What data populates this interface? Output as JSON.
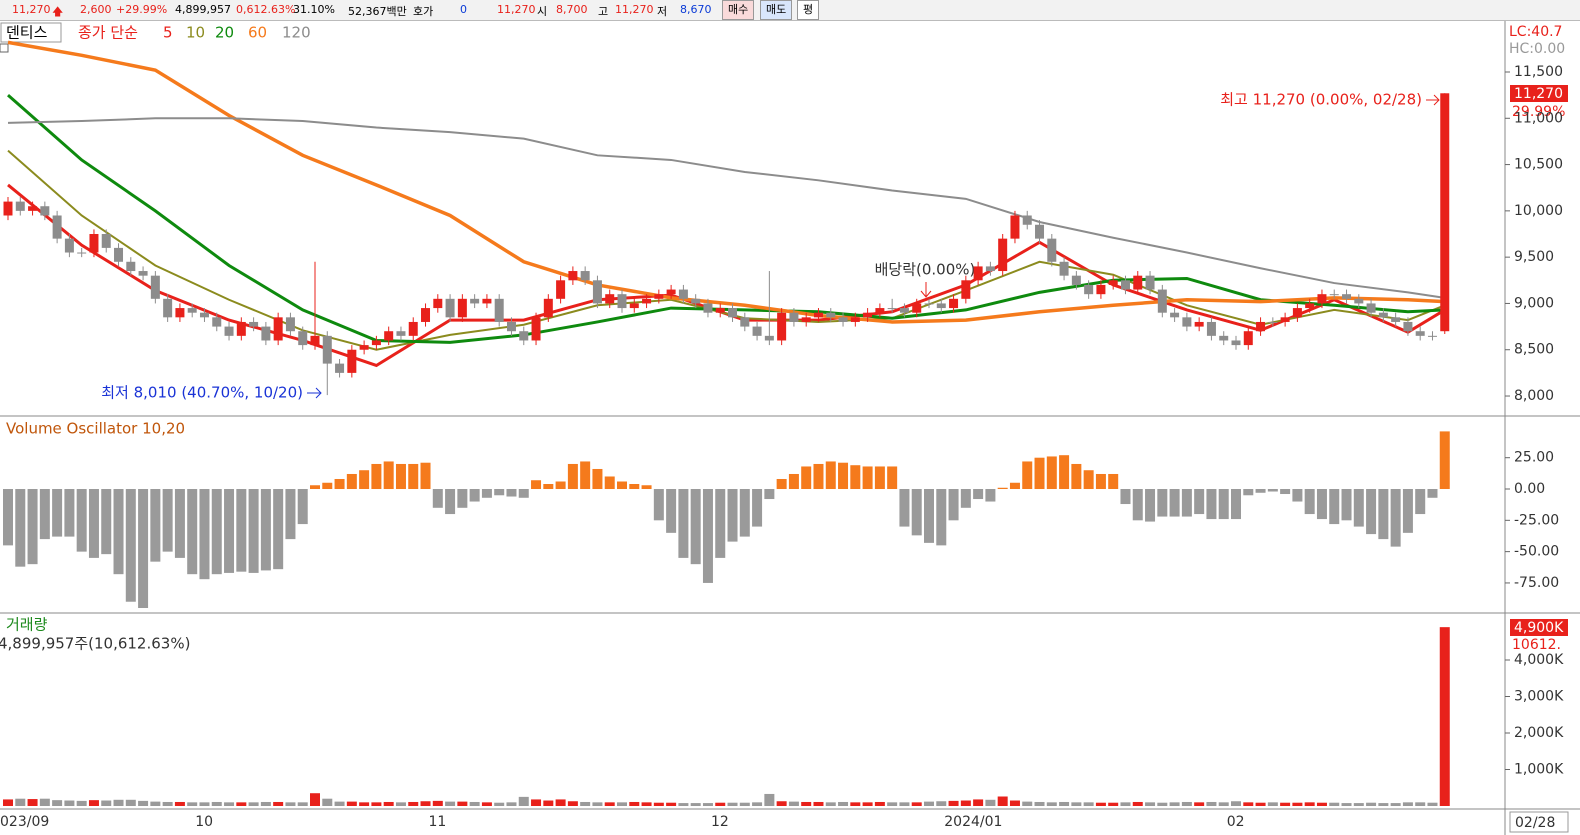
{
  "quote_bar": {
    "price": "11,270",
    "change": "2,600",
    "change_pct": "+29.99%",
    "volume": "4,899,957",
    "volume_pct": "0,612.63%",
    "turnover": "31.10%",
    "amount": "52,367백만",
    "ask_label": "호가",
    "ask": "0",
    "ask_price": "11,270",
    "open_label": "시",
    "open": "8,700",
    "high_label": "고",
    "high": "11,270",
    "low_label": "저",
    "low": "8,670",
    "buttons": [
      "매수",
      "매도",
      "평"
    ]
  },
  "chart_data": [
    {
      "type": "candlestick",
      "title": "덴티스",
      "legend_label": "종가 단순",
      "lc_label": "LC:40.7",
      "hc_label": "HC:0.00",
      "up_color": "#e8211b",
      "down_color": "#8c8c8c",
      "open": [
        9950,
        10100,
        10000,
        10050,
        9950,
        9700,
        9550,
        9550,
        9750,
        9600,
        9450,
        9350,
        9300,
        9050,
        8850,
        8950,
        8900,
        8850,
        8750,
        8650,
        8800,
        8750,
        8600,
        8850,
        8700,
        8550,
        8650,
        8350,
        8250,
        8500,
        8550,
        8600,
        8700,
        8650,
        8800,
        8950,
        9050,
        8850,
        9050,
        9000,
        9050,
        8800,
        8700,
        8600,
        8850,
        9050,
        9250,
        9350,
        9250,
        9000,
        9100,
        8950,
        9000,
        9050,
        9100,
        9150,
        9050,
        9000,
        8900,
        8950,
        8850,
        8750,
        8650,
        8600,
        8900,
        8800,
        8850,
        8900,
        8850,
        8800,
        8850,
        8900,
        8950,
        8950,
        8900,
        9000,
        9000,
        8950,
        9050,
        9250,
        9400,
        9350,
        9700,
        9950,
        9850,
        9700,
        9450,
        9300,
        9200,
        9100,
        9200,
        9250,
        9150,
        9300,
        9150,
        8900,
        8850,
        8750,
        8800,
        8650,
        8600,
        8550,
        8700,
        8800,
        8800,
        8850,
        8950,
        9000,
        9100,
        9100,
        9050,
        9000,
        8900,
        8850,
        8800,
        8700,
        8650,
        8700
      ],
      "high": [
        10150,
        10150,
        10100,
        10100,
        10000,
        9750,
        9600,
        9800,
        9800,
        9650,
        9500,
        9400,
        9350,
        9100,
        9000,
        9000,
        8950,
        8900,
        8800,
        8850,
        8850,
        8800,
        8900,
        8900,
        8750,
        9450,
        8700,
        8400,
        8550,
        8600,
        8650,
        8750,
        8750,
        8850,
        9000,
        9100,
        9100,
        9100,
        9100,
        9100,
        9100,
        8850,
        8750,
        8900,
        9100,
        9300,
        9400,
        9400,
        9300,
        9150,
        9150,
        9050,
        9100,
        9150,
        9200,
        9200,
        9100,
        9050,
        9000,
        9000,
        8900,
        8800,
        9350,
        8950,
        8950,
        8900,
        8950,
        8950,
        8900,
        8900,
        8950,
        9000,
        9050,
        9000,
        9050,
        9050,
        9050,
        9100,
        9300,
        9450,
        9450,
        9750,
        10000,
        10000,
        9900,
        9750,
        9500,
        9350,
        9250,
        9250,
        9300,
        9300,
        9350,
        9350,
        9200,
        8950,
        8900,
        8850,
        8850,
        8700,
        8650,
        8750,
        8850,
        8850,
        8900,
        9000,
        9050,
        9150,
        9150,
        9150,
        9100,
        9050,
        8950,
        8900,
        8850,
        8750,
        8700,
        11270
      ],
      "low": [
        9900,
        9950,
        9950,
        9900,
        9650,
        9500,
        9500,
        9500,
        9550,
        9400,
        9300,
        9250,
        9000,
        8800,
        8800,
        8850,
        8800,
        8700,
        8600,
        8600,
        8700,
        8550,
        8550,
        8650,
        8500,
        8500,
        8010,
        8200,
        8200,
        8450,
        8500,
        8550,
        8600,
        8600,
        8750,
        8900,
        8800,
        8800,
        8950,
        8950,
        8750,
        8650,
        8550,
        8550,
        8800,
        9000,
        9200,
        9200,
        8950,
        8950,
        8900,
        8900,
        8950,
        9000,
        9050,
        9000,
        8950,
        8850,
        8850,
        8800,
        8700,
        8600,
        8550,
        8550,
        8750,
        8750,
        8800,
        8800,
        8750,
        8750,
        8800,
        8850,
        8900,
        8850,
        8850,
        8950,
        8900,
        8900,
        9000,
        9200,
        9300,
        9300,
        9650,
        9800,
        9650,
        9400,
        9250,
        9150,
        9050,
        9050,
        9150,
        9100,
        9100,
        9100,
        8850,
        8800,
        8700,
        8700,
        8600,
        8550,
        8500,
        8500,
        8650,
        8750,
        8750,
        8800,
        8900,
        8950,
        9050,
        9000,
        8950,
        8850,
        8800,
        8750,
        8650,
        8600,
        8600,
        8670
      ],
      "close": [
        10100,
        10000,
        10050,
        9950,
        9700,
        9550,
        9550,
        9750,
        9600,
        9450,
        9350,
        9300,
        9050,
        8850,
        8950,
        8900,
        8850,
        8750,
        8650,
        8800,
        8750,
        8600,
        8850,
        8700,
        8550,
        8650,
        8350,
        8250,
        8500,
        8550,
        8600,
        8700,
        8650,
        8800,
        8950,
        9050,
        8850,
        9050,
        9000,
        9050,
        8800,
        8700,
        8600,
        8850,
        9050,
        9250,
        9350,
        9250,
        9000,
        9100,
        8950,
        9000,
        9050,
        9100,
        9150,
        9050,
        9000,
        8900,
        8950,
        8850,
        8750,
        8650,
        8600,
        8900,
        8800,
        8850,
        8900,
        8850,
        8800,
        8850,
        8900,
        8950,
        8950,
        8900,
        9000,
        9000,
        8950,
        9050,
        9250,
        9400,
        9350,
        9700,
        9950,
        9850,
        9700,
        9450,
        9300,
        9200,
        9100,
        9200,
        9250,
        9150,
        9300,
        9150,
        8900,
        8850,
        8750,
        8800,
        8650,
        8600,
        8550,
        8700,
        8800,
        8800,
        8850,
        8950,
        9000,
        9100,
        9100,
        9050,
        9000,
        8900,
        8850,
        8800,
        8700,
        8650,
        8650,
        11270
      ],
      "series": [
        {
          "name": "5",
          "color": "#e8211b",
          "x": [
            0,
            6,
            12,
            18,
            24,
            30,
            36,
            42,
            48,
            54,
            60,
            66,
            72,
            78,
            84,
            90,
            96,
            102,
            108,
            114,
            117
          ],
          "values": [
            10280,
            9630,
            9140,
            8820,
            8600,
            8330,
            8820,
            8820,
            9040,
            9090,
            8820,
            8820,
            8910,
            9200,
            9660,
            9200,
            8930,
            8710,
            9040,
            8690,
            8930
          ]
        },
        {
          "name": "10",
          "color": "#8b8b1e",
          "x": [
            0,
            6,
            12,
            18,
            24,
            30,
            36,
            42,
            48,
            54,
            60,
            66,
            72,
            78,
            84,
            90,
            96,
            102,
            108,
            114,
            117
          ],
          "values": [
            10650,
            9950,
            9410,
            9040,
            8710,
            8500,
            8660,
            8770,
            8980,
            9040,
            8840,
            8800,
            8840,
            9140,
            9450,
            9310,
            8980,
            8770,
            8930,
            8820,
            8980
          ]
        },
        {
          "name": "20",
          "color": "#0e8a0e",
          "x": [
            0,
            6,
            12,
            18,
            24,
            30,
            36,
            42,
            48,
            54,
            60,
            66,
            72,
            78,
            84,
            90,
            96,
            102,
            108,
            114,
            117
          ],
          "values": [
            11250,
            10550,
            10000,
            9410,
            8930,
            8600,
            8580,
            8660,
            8800,
            8950,
            8930,
            8910,
            8840,
            8930,
            9120,
            9250,
            9270,
            9040,
            8980,
            8910,
            8930
          ]
        },
        {
          "name": "60",
          "color": "#f57a1c",
          "x": [
            0,
            6,
            12,
            18,
            24,
            30,
            36,
            42,
            48,
            54,
            60,
            66,
            72,
            78,
            84,
            90,
            96,
            102,
            108,
            114,
            117
          ],
          "values": [
            11820,
            11680,
            11520,
            11030,
            10600,
            10280,
            9950,
            9450,
            9200,
            9060,
            8980,
            8870,
            8800,
            8820,
            8910,
            8980,
            9040,
            9020,
            9060,
            9040,
            9020
          ]
        },
        {
          "name": "120",
          "color": "#8c8c8c",
          "x": [
            0,
            6,
            12,
            18,
            24,
            30,
            36,
            42,
            48,
            54,
            60,
            66,
            72,
            78,
            84,
            90,
            96,
            102,
            108,
            114,
            117
          ],
          "values": [
            10950,
            10970,
            11000,
            11000,
            10970,
            10900,
            10850,
            10780,
            10600,
            10550,
            10420,
            10330,
            10220,
            10130,
            9880,
            9710,
            9550,
            9380,
            9220,
            9120,
            9060
          ]
        }
      ],
      "ylim": [
        7795,
        12040
      ],
      "yticks": [
        {
          "value": 8000,
          "label": "8,000"
        },
        {
          "value": 8500,
          "label": "8,500"
        },
        {
          "value": 9000,
          "label": "9,000"
        },
        {
          "value": 9500,
          "label": "9,500"
        },
        {
          "value": 10000,
          "label": "10,000"
        },
        {
          "value": 10500,
          "label": "10,500"
        },
        {
          "value": 11000,
          "label": "11,000"
        },
        {
          "value": 11500,
          "label": "11,500"
        }
      ],
      "last_price_label": "11,270",
      "last_change_label": "29.99%",
      "annotations": [
        "최고 11,270 (0.00%, 02/28)",
        "최저 8,010 (40.70%, 10/20)",
        "배당락(0.00%)"
      ]
    },
    {
      "type": "bar",
      "title": "Volume Oscillator 10,20",
      "positive_color": "#f57a1c",
      "negative_color": "#9a9a9a",
      "values": [
        -45,
        -62,
        -60,
        -40,
        -38,
        -38,
        -50,
        -55,
        -52,
        -68,
        -90,
        -95,
        -58,
        -50,
        -55,
        -68,
        -72,
        -68,
        -67,
        -66,
        -67,
        -65,
        -64,
        -40,
        -28,
        3,
        5,
        8,
        12,
        15,
        20,
        22,
        20,
        20,
        21,
        -15,
        -20,
        -15,
        -10,
        -7,
        -5,
        -6,
        -7,
        7,
        4,
        6,
        20,
        22,
        16,
        10,
        6,
        4,
        3,
        -25,
        -35,
        -55,
        -60,
        -75,
        -55,
        -42,
        -38,
        -30,
        -8,
        8,
        12,
        18,
        20,
        22,
        21,
        19,
        18,
        18,
        18,
        -30,
        -37,
        -43,
        -45,
        -25,
        -15,
        -8,
        -10,
        1,
        5,
        22,
        25,
        26,
        27,
        20,
        15,
        12,
        12,
        -12,
        -25,
        -26,
        -22,
        -22,
        -22,
        -20,
        -24,
        -24,
        -24,
        -5,
        -3,
        -2,
        -4,
        -10,
        -20,
        -24,
        -28,
        -25,
        -30,
        -36,
        -40,
        -46,
        -35,
        -20,
        -7,
        46
      ],
      "ylim": [
        -98.2,
        56.7
      ],
      "yticks": [
        {
          "value": -75,
          "label": "-75.00"
        },
        {
          "value": -50,
          "label": "-50.00"
        },
        {
          "value": -25,
          "label": "-25.00"
        },
        {
          "value": 0,
          "label": "0.00"
        },
        {
          "value": 25,
          "label": "25.00"
        }
      ]
    },
    {
      "type": "bar",
      "title": "거래량",
      "subtitle": "4,899,957주(10,612.63%)",
      "values": [
        180,
        200,
        190,
        200,
        160,
        150,
        140,
        160,
        150,
        170,
        170,
        140,
        120,
        110,
        110,
        100,
        100,
        110,
        100,
        100,
        100,
        110,
        110,
        100,
        100,
        350,
        200,
        120,
        120,
        100,
        100,
        110,
        100,
        110,
        130,
        140,
        120,
        120,
        110,
        100,
        90,
        100,
        250,
        180,
        150,
        180,
        130,
        110,
        100,
        100,
        100,
        110,
        100,
        90,
        90,
        80,
        80,
        80,
        90,
        90,
        90,
        100,
        330,
        130,
        120,
        110,
        110,
        100,
        110,
        100,
        100,
        110,
        100,
        100,
        100,
        120,
        130,
        140,
        150,
        180,
        170,
        260,
        150,
        120,
        110,
        100,
        110,
        100,
        100,
        90,
        90,
        100,
        110,
        100,
        90,
        100,
        110,
        100,
        110,
        100,
        130,
        100,
        90,
        100,
        90,
        90,
        100,
        90,
        90,
        80,
        80,
        90,
        80,
        80,
        100,
        100,
        90,
        4899.957
      ],
      "last_value_label": "4,900K",
      "last_pct_label": "10612.",
      "categories": [
        "023/09",
        null,
        null,
        null,
        null,
        null,
        null,
        null,
        null,
        null,
        null,
        null,
        null,
        null,
        null,
        "10",
        null,
        null,
        null,
        null,
        null,
        null,
        null,
        null,
        null,
        null,
        null,
        null,
        null,
        null,
        null,
        null,
        null,
        null,
        "11",
        null,
        null,
        null,
        null,
        null,
        null,
        null,
        null,
        null,
        null,
        null,
        null,
        null,
        null,
        null,
        null,
        null,
        null,
        null,
        null,
        null,
        null,
        "12",
        null,
        null,
        null,
        null,
        null,
        null,
        null,
        null,
        null,
        null,
        null,
        null,
        null,
        null,
        null,
        null,
        null,
        null,
        "2024/01",
        null,
        null,
        null,
        null,
        null,
        null,
        null,
        null,
        null,
        null,
        null,
        null,
        null,
        null,
        null,
        null,
        null,
        null,
        null,
        null,
        null,
        null,
        "02",
        null,
        null,
        null,
        null,
        null,
        null,
        null,
        null,
        null,
        null,
        null,
        null,
        null,
        null,
        null,
        null,
        null,
        null
      ],
      "last_date": "02/28",
      "ylim": [
        -55,
        5233
      ],
      "yticks": [
        {
          "value": 1000,
          "label": "1,000K"
        },
        {
          "value": 2000,
          "label": "2,000K"
        },
        {
          "value": 3000,
          "label": "3,000K"
        },
        {
          "value": 4000,
          "label": "4,000K"
        }
      ]
    }
  ]
}
